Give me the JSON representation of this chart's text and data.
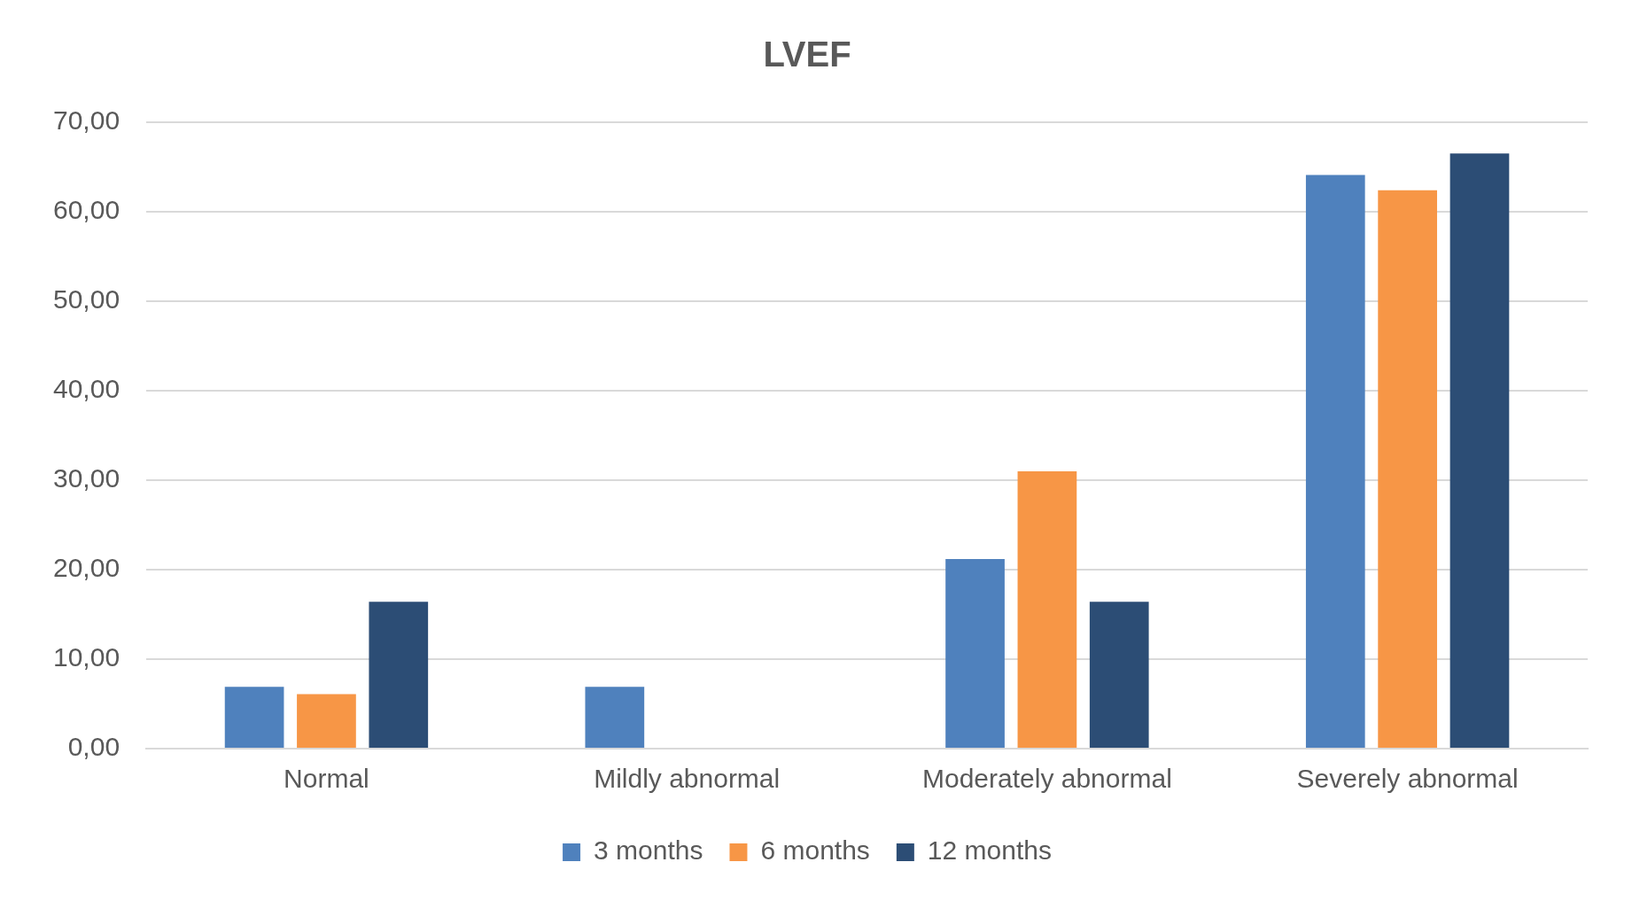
{
  "chart_data": {
    "type": "bar",
    "title": "LVEF",
    "categories": [
      "Normal",
      "Mildly abnormal",
      "Moderately abnormal",
      "Severely abnormal"
    ],
    "series": [
      {
        "name": "3 months",
        "color": "#4f81bd",
        "values": [
          6.9,
          6.9,
          21.2,
          64.1
        ]
      },
      {
        "name": "6 months",
        "color": "#f79646",
        "values": [
          6.1,
          0,
          31.0,
          62.4
        ]
      },
      {
        "name": "12 months",
        "color": "#2c4d75",
        "values": [
          16.4,
          0,
          16.4,
          66.5
        ]
      }
    ],
    "ylim": [
      0,
      70
    ],
    "yticks": [
      {
        "value": 0,
        "label": "0,00"
      },
      {
        "value": 10,
        "label": "10,00"
      },
      {
        "value": 20,
        "label": "20,00"
      },
      {
        "value": 30,
        "label": "30,00"
      },
      {
        "value": 40,
        "label": "40,00"
      },
      {
        "value": 50,
        "label": "50,00"
      },
      {
        "value": 60,
        "label": "60,00"
      },
      {
        "value": 70,
        "label": "70,00"
      }
    ],
    "grid": "y",
    "legend": "bottom"
  }
}
